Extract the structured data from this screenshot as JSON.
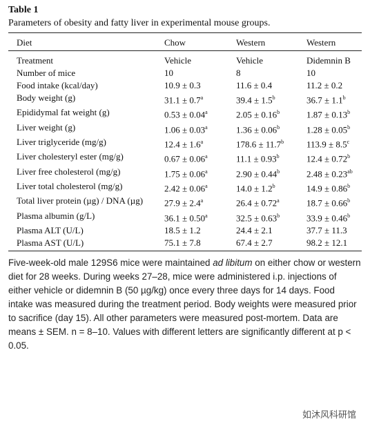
{
  "header": {
    "label": "Table 1",
    "caption": "Parameters of obesity and fatty liver in experimental mouse groups."
  },
  "table": {
    "columns": [
      "Diet",
      "Chow",
      "Western",
      "Western"
    ],
    "rows": [
      [
        "Treatment",
        "Vehicle",
        "Vehicle",
        "Didemnin B"
      ],
      [
        "Number of mice",
        "10",
        "8",
        "10"
      ],
      [
        "Food intake (kcal/day)",
        "10.9 ± 0.3",
        "11.6 ± 0.4",
        "11.2 ± 0.2"
      ],
      [
        "Body weight (g)",
        {
          "text": "31.1 ± 0.7",
          "sup": "a"
        },
        {
          "text": "39.4 ± 1.5",
          "sup": "b"
        },
        {
          "text": "36.7 ± 1.1",
          "sup": "b"
        }
      ],
      [
        "Epididymal fat weight (g)",
        {
          "text": "0.53 ± 0.04",
          "sup": "a"
        },
        {
          "text": "2.05 ± 0.16",
          "sup": "b"
        },
        {
          "text": "1.87 ± 0.13",
          "sup": "b"
        }
      ],
      [
        "Liver weight (g)",
        {
          "text": "1.06 ± 0.03",
          "sup": "a"
        },
        {
          "text": "1.36 ± 0.06",
          "sup": "b"
        },
        {
          "text": "1.28 ± 0.05",
          "sup": "b"
        }
      ],
      [
        "Liver triglyceride (mg/g)",
        {
          "text": "12.4 ± 1.6",
          "sup": "a"
        },
        {
          "text": "178.6 ± 11.7",
          "sup": "b"
        },
        {
          "text": "113.9 ± 8.5",
          "sup": "c"
        }
      ],
      [
        "Liver cholesteryl ester (mg/g)",
        {
          "text": "0.67 ± 0.06",
          "sup": "a"
        },
        {
          "text": "11.1 ± 0.93",
          "sup": "b"
        },
        {
          "text": "12.4 ± 0.72",
          "sup": "b"
        }
      ],
      [
        "Liver free cholesterol (mg/g)",
        {
          "text": "1.75 ± 0.06",
          "sup": "a"
        },
        {
          "text": "2.90 ± 0.44",
          "sup": "b"
        },
        {
          "text": "2.48 ± 0.23",
          "sup": "ab"
        }
      ],
      [
        "Liver total cholesterol (mg/g)",
        {
          "text": "2.42 ± 0.06",
          "sup": "a"
        },
        {
          "text": "14.0 ± 1.2",
          "sup": "b"
        },
        {
          "text": "14.9 ± 0.86",
          "sup": "b"
        }
      ],
      [
        "Total liver protein (µg) / DNA (µg)",
        {
          "text": "27.9 ± 2.4",
          "sup": "a"
        },
        {
          "text": "26.4 ± 0.72",
          "sup": "a"
        },
        {
          "text": "18.7 ± 0.66",
          "sup": "b"
        }
      ],
      [
        "Plasma albumin (g/L)",
        {
          "text": "36.1 ± 0.50",
          "sup": "a"
        },
        {
          "text": "32.5 ± 0.63",
          "sup": "b"
        },
        {
          "text": "33.9 ± 0.46",
          "sup": "b"
        }
      ],
      [
        "Plasma ALT (U/L)",
        "18.5 ± 1.2",
        "24.4 ± 2.1",
        "37.7 ± 11.3"
      ],
      [
        "Plasma AST (U/L)",
        "75.1 ± 7.8",
        "67.4 ± 2.7",
        "98.2 ± 12.1"
      ]
    ]
  },
  "note": [
    "Five-week-old male 129S6 mice were maintained ",
    "ad libitum",
    " on either chow or western diet for 28 weeks. During weeks 27–28, mice were administered i.p. injections of either vehicle or didemnin B (50 µg/kg) once every three days for 14 days. Food intake was measured during the treatment period. Body weights were measured prior to sacrifice (day 15). All other parameters were measured post-mortem. Data are means ± SEM. n = 8–10. Values with different letters are significantly different at p < 0.05."
  ],
  "watermark": "如沐风科研馆"
}
